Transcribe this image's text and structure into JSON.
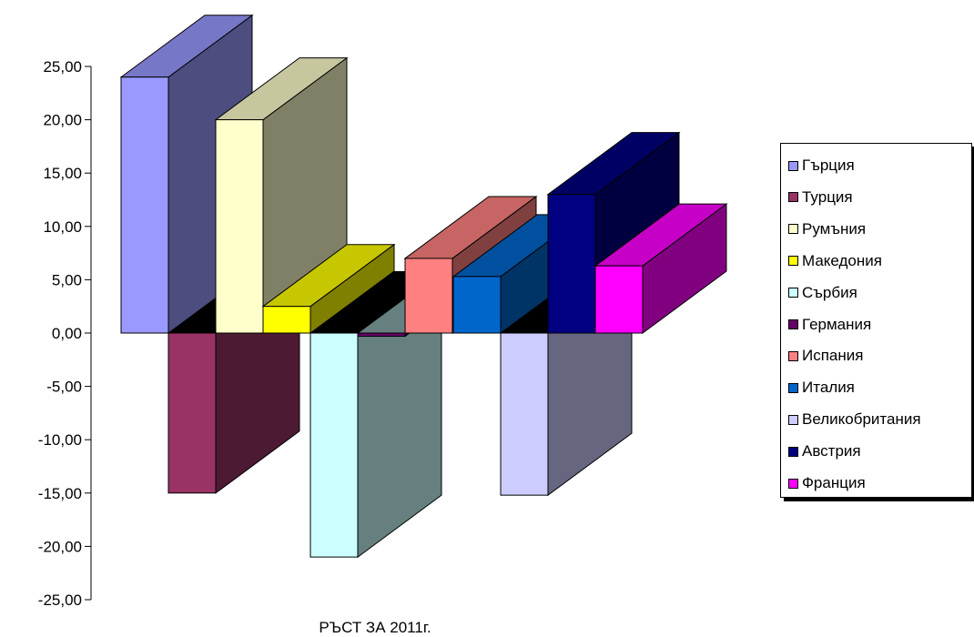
{
  "chart_data": {
    "type": "bar",
    "xlabel": "РЪСТ ЗА 2011г.",
    "ylabel": "",
    "ylim": [
      -25,
      25
    ],
    "y_tick_step": 5,
    "y_tick_labels": [
      "25,00",
      "20,00",
      "15,00",
      "10,00",
      "5,00",
      "0,00",
      "-5,00",
      "-10,00",
      "-15,00",
      "-20,00",
      "-25,00"
    ],
    "legend_position": "right",
    "grid": false,
    "series": [
      {
        "name": "Гърция",
        "value": 24.0,
        "color": "#9999FF"
      },
      {
        "name": "Турция",
        "value": -15.0,
        "color": "#993366"
      },
      {
        "name": "Румъния",
        "value": 20.0,
        "color": "#FFFFCC"
      },
      {
        "name": "Македония",
        "value": 2.5,
        "color": "#FFFF00"
      },
      {
        "name": "Сърбия",
        "value": -21.0,
        "color": "#CCFFFF"
      },
      {
        "name": "Германия",
        "value": -0.3,
        "color": "#660066"
      },
      {
        "name": "Испания",
        "value": 7.0,
        "color": "#FF8080"
      },
      {
        "name": "Италия",
        "value": 5.3,
        "color": "#0066CC"
      },
      {
        "name": "Великобритания",
        "value": -15.2,
        "color": "#CCCCFF"
      },
      {
        "name": "Австрия",
        "value": 13.0,
        "color": "#000080"
      },
      {
        "name": "Франция",
        "value": 6.3,
        "color": "#FF00FF"
      }
    ]
  }
}
